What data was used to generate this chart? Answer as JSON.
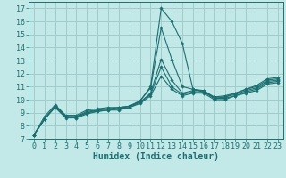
{
  "xlabel": "Humidex (Indice chaleur)",
  "background_color": "#c2e8e8",
  "grid_color": "#a0cccc",
  "line_color": "#1a7070",
  "xlim": [
    -0.5,
    23.5
  ],
  "ylim": [
    7,
    17.5
  ],
  "yticks": [
    7,
    8,
    9,
    10,
    11,
    12,
    13,
    14,
    15,
    16,
    17
  ],
  "xticks": [
    0,
    1,
    2,
    3,
    4,
    5,
    6,
    7,
    8,
    9,
    10,
    11,
    12,
    13,
    14,
    15,
    16,
    17,
    18,
    19,
    20,
    21,
    22,
    23
  ],
  "series": [
    {
      "x": [
        0,
        1,
        2,
        3,
        4,
        5,
        6,
        7,
        8,
        9,
        10,
        11,
        12,
        13,
        14,
        15,
        16,
        17,
        18,
        19,
        20,
        21,
        22,
        23
      ],
      "y": [
        7.3,
        8.7,
        9.6,
        8.8,
        8.8,
        9.2,
        9.3,
        9.4,
        9.4,
        9.5,
        9.9,
        11.0,
        17.0,
        16.0,
        14.3,
        10.8,
        10.7,
        10.1,
        10.2,
        10.5,
        10.8,
        11.1,
        11.6,
        11.7
      ]
    },
    {
      "x": [
        0,
        1,
        2,
        3,
        4,
        5,
        6,
        7,
        8,
        9,
        10,
        11,
        12,
        13,
        14,
        15,
        16,
        17,
        18,
        19,
        20,
        21,
        22,
        23
      ],
      "y": [
        7.3,
        8.5,
        9.5,
        8.7,
        8.7,
        9.1,
        9.2,
        9.3,
        9.4,
        9.5,
        9.9,
        10.9,
        15.5,
        13.1,
        11.0,
        10.8,
        10.6,
        10.2,
        10.3,
        10.5,
        10.8,
        11.0,
        11.5,
        11.6
      ]
    },
    {
      "x": [
        0,
        1,
        2,
        3,
        4,
        5,
        6,
        7,
        8,
        9,
        10,
        11,
        12,
        13,
        14,
        15,
        16,
        17,
        18,
        19,
        20,
        21,
        22,
        23
      ],
      "y": [
        7.3,
        8.5,
        9.5,
        8.7,
        8.7,
        9.0,
        9.2,
        9.3,
        9.3,
        9.5,
        9.8,
        10.5,
        13.1,
        11.5,
        10.5,
        10.7,
        10.7,
        10.2,
        10.2,
        10.4,
        10.7,
        10.9,
        11.4,
        11.5
      ]
    },
    {
      "x": [
        0,
        1,
        2,
        3,
        4,
        5,
        6,
        7,
        8,
        9,
        10,
        11,
        12,
        13,
        14,
        15,
        16,
        17,
        18,
        19,
        20,
        21,
        22,
        23
      ],
      "y": [
        7.3,
        8.5,
        9.5,
        8.7,
        8.6,
        9.0,
        9.1,
        9.2,
        9.3,
        9.4,
        9.8,
        10.4,
        12.5,
        11.0,
        10.4,
        10.6,
        10.6,
        10.1,
        10.1,
        10.3,
        10.6,
        10.8,
        11.3,
        11.4
      ]
    },
    {
      "x": [
        0,
        1,
        2,
        3,
        4,
        5,
        6,
        7,
        8,
        9,
        10,
        11,
        12,
        13,
        14,
        15,
        16,
        17,
        18,
        19,
        20,
        21,
        22,
        23
      ],
      "y": [
        7.3,
        8.5,
        9.4,
        8.6,
        8.6,
        8.9,
        9.1,
        9.2,
        9.2,
        9.4,
        9.7,
        10.3,
        11.8,
        10.8,
        10.3,
        10.5,
        10.5,
        10.0,
        10.0,
        10.3,
        10.5,
        10.7,
        11.2,
        11.3
      ]
    }
  ],
  "xlabel_fontsize": 7,
  "tick_fontsize": 6
}
